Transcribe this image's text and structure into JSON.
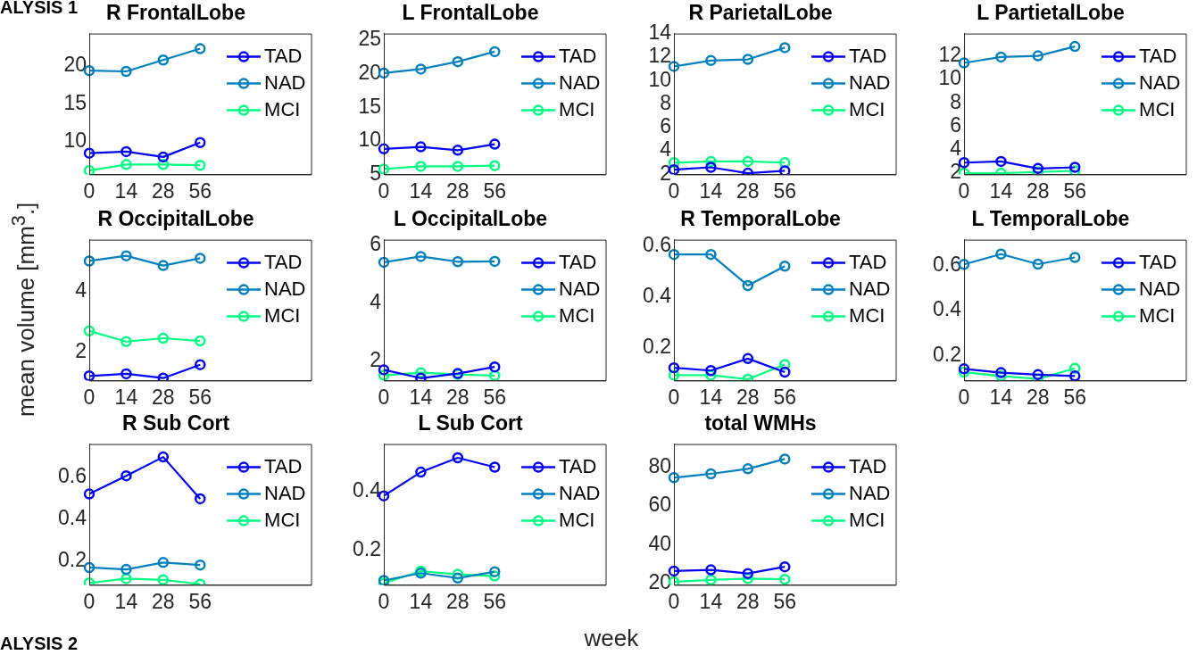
{
  "chart_data": [
    {
      "type": "line",
      "title": "R FrontalLobe",
      "annotations": [
        "ALYSIS 1"
      ],
      "categories": [
        "0",
        "14",
        "28",
        "56",
        null,
        null,
        null
      ],
      "ylim": [
        5.7,
        24.3
      ],
      "yticks": [
        10,
        15,
        20
      ],
      "marker": "circle",
      "legend": "top right",
      "grid": false,
      "series": [
        {
          "name": "TAD",
          "color": "#0000ff",
          "values": [
            8.5,
            8.7,
            8.0,
            9.9,
            null,
            null,
            null
          ]
        },
        {
          "name": "NAD",
          "color": "#0080bf",
          "values": [
            19.4,
            19.3,
            20.8,
            22.3,
            null,
            null,
            null
          ]
        },
        {
          "name": "MCI",
          "color": "#00ff80",
          "values": [
            6.2,
            7.0,
            7.0,
            6.9,
            null,
            null,
            null
          ]
        }
      ]
    },
    {
      "type": "line",
      "title": "L FrontalLobe",
      "categories": [
        "0",
        "14",
        "28",
        "56",
        null,
        null,
        null
      ],
      "ylim": [
        5,
        26
      ],
      "yticks": [
        5,
        10,
        15,
        20,
        25
      ],
      "marker": "circle",
      "legend": "top right",
      "grid": false,
      "series": [
        {
          "name": "TAD",
          "color": "#0000ff",
          "values": [
            8.8,
            9.1,
            8.6,
            9.5,
            null,
            null,
            null
          ]
        },
        {
          "name": "NAD",
          "color": "#0080bf",
          "values": [
            20.1,
            20.7,
            21.8,
            23.3,
            null,
            null,
            null
          ]
        },
        {
          "name": "MCI",
          "color": "#00ff80",
          "values": [
            5.8,
            6.2,
            6.2,
            6.3,
            null,
            null,
            null
          ]
        }
      ]
    },
    {
      "type": "line",
      "title": "R ParietalLobe",
      "categories": [
        "0",
        "14",
        "28",
        "56",
        null,
        null,
        null
      ],
      "ylim": [
        2,
        14
      ],
      "yticks": [
        2,
        4,
        6,
        8,
        10,
        12,
        14
      ],
      "marker": "circle",
      "legend": "top right",
      "grid": false,
      "series": [
        {
          "name": "TAD",
          "color": "#0000ff",
          "values": [
            2.4,
            2.6,
            2.1,
            2.3,
            null,
            null,
            null
          ]
        },
        {
          "name": "NAD",
          "color": "#0080bf",
          "values": [
            11.2,
            11.7,
            11.8,
            12.8,
            null,
            null,
            null
          ]
        },
        {
          "name": "MCI",
          "color": "#00ff80",
          "values": [
            3.0,
            3.1,
            3.1,
            3.0,
            null,
            null,
            null
          ]
        }
      ]
    },
    {
      "type": "line",
      "title": "L PartietalLobe",
      "categories": [
        "0",
        "14",
        "28",
        "56",
        null,
        null,
        null
      ],
      "ylim": [
        1.9,
        13.9
      ],
      "yticks": [
        2,
        4,
        6,
        8,
        10,
        12
      ],
      "marker": "circle",
      "legend": "top right",
      "grid": false,
      "series": [
        {
          "name": "TAD",
          "color": "#0000ff",
          "values": [
            2.9,
            3.0,
            2.4,
            2.5,
            null,
            null,
            null
          ]
        },
        {
          "name": "NAD",
          "color": "#0080bf",
          "values": [
            11.4,
            11.9,
            12.0,
            12.8,
            null,
            null,
            null
          ]
        },
        {
          "name": "MCI",
          "color": "#00ff80",
          "values": [
            2.0,
            2.0,
            2.1,
            2.2,
            null,
            null,
            null
          ]
        }
      ]
    },
    {
      "type": "line",
      "title": "R OccipitalLobe",
      "ylabel": "mean volume [mm$^{3}$.]",
      "categories": [
        "0",
        "14",
        "28",
        "56",
        null,
        null,
        null
      ],
      "ylim": [
        1.07,
        5.7
      ],
      "yticks": [
        2,
        4
      ],
      "marker": "circle",
      "legend": "top right",
      "grid": false,
      "series": [
        {
          "name": "TAD",
          "color": "#0000ff",
          "values": [
            1.22,
            1.29,
            1.15,
            1.59,
            null,
            null,
            null
          ]
        },
        {
          "name": "NAD",
          "color": "#0080bf",
          "values": [
            5.0,
            5.17,
            4.85,
            5.09,
            null,
            null,
            null
          ]
        },
        {
          "name": "MCI",
          "color": "#00ff80",
          "values": [
            2.7,
            2.35,
            2.46,
            2.37,
            null,
            null,
            null
          ]
        }
      ]
    },
    {
      "type": "line",
      "title": "L OccipitalLobe",
      "categories": [
        "0",
        "14",
        "28",
        "56",
        null,
        null,
        null
      ],
      "ylim": [
        1.33,
        6.19
      ],
      "yticks": [
        2,
        4,
        6
      ],
      "marker": "circle",
      "legend": "top right",
      "grid": false,
      "series": [
        {
          "name": "TAD",
          "color": "#0000ff",
          "values": [
            1.7,
            1.41,
            1.57,
            1.8,
            null,
            null,
            null
          ]
        },
        {
          "name": "NAD",
          "color": "#0080bf",
          "values": [
            5.41,
            5.61,
            5.43,
            5.44,
            null,
            null,
            null
          ]
        },
        {
          "name": "MCI",
          "color": "#00ff80",
          "values": [
            1.51,
            1.6,
            1.54,
            1.5,
            null,
            null,
            null
          ]
        }
      ]
    },
    {
      "type": "line",
      "title": "R TemporalLobe",
      "categories": [
        "0",
        "14",
        "28",
        "56",
        null,
        null,
        null
      ],
      "ylim": [
        0.071,
        0.624
      ],
      "yticks": [
        0.2,
        0.4,
        0.6
      ],
      "marker": "circle",
      "legend": "top right",
      "grid": false,
      "series": [
        {
          "name": "TAD",
          "color": "#0000ff",
          "values": [
            0.121,
            0.11,
            0.157,
            0.104,
            null,
            null,
            null
          ]
        },
        {
          "name": "NAD",
          "color": "#0080bf",
          "values": [
            0.566,
            0.566,
            0.444,
            0.52,
            null,
            null,
            null
          ]
        },
        {
          "name": "MCI",
          "color": "#00ff80",
          "values": [
            0.092,
            0.092,
            0.076,
            0.134,
            null,
            null,
            null
          ]
        }
      ]
    },
    {
      "type": "line",
      "title": "L TemporalLobe",
      "categories": [
        "0",
        "14",
        "28",
        "56",
        null,
        null,
        null
      ],
      "ylim": [
        0.089,
        0.716
      ],
      "yticks": [
        0.2,
        0.4,
        0.6
      ],
      "marker": "circle",
      "legend": "top right",
      "grid": false,
      "series": [
        {
          "name": "TAD",
          "color": "#0000ff",
          "values": [
            0.141,
            0.124,
            0.115,
            0.109,
            null,
            null,
            null
          ]
        },
        {
          "name": "NAD",
          "color": "#0080bf",
          "values": [
            0.606,
            0.652,
            0.607,
            0.637,
            null,
            null,
            null
          ]
        },
        {
          "name": "MCI",
          "color": "#00ff80",
          "values": [
            0.126,
            0.109,
            0.096,
            0.143,
            null,
            null,
            null
          ]
        }
      ]
    },
    {
      "type": "line",
      "title": "R Sub Cort",
      "annotations": [
        "ALYSIS 2"
      ],
      "categories": [
        "0",
        "14",
        "28",
        "56",
        null,
        null,
        null
      ],
      "ylim": [
        0.084,
        0.758
      ],
      "yticks": [
        0.2,
        0.4,
        0.6
      ],
      "marker": "circle",
      "legend": "top right",
      "grid": false,
      "series": [
        {
          "name": "TAD",
          "color": "#0000ff",
          "values": [
            0.519,
            0.606,
            0.696,
            0.496,
            null,
            null,
            null
          ]
        },
        {
          "name": "NAD",
          "color": "#0080bf",
          "values": [
            0.167,
            0.158,
            0.191,
            0.179,
            null,
            null,
            null
          ]
        },
        {
          "name": "MCI",
          "color": "#00ff80",
          "values": [
            0.093,
            0.114,
            0.108,
            0.087,
            null,
            null,
            null
          ]
        }
      ]
    },
    {
      "type": "line",
      "title": "L Sub Cort",
      "xlabel": "week",
      "categories": [
        "0",
        "14",
        "28",
        "56",
        null,
        null,
        null
      ],
      "ylim": [
        0.081,
        0.562
      ],
      "yticks": [
        0.2,
        0.4
      ],
      "marker": "circle",
      "legend": "top right",
      "grid": false,
      "series": [
        {
          "name": "TAD",
          "color": "#0000ff",
          "values": [
            0.385,
            0.466,
            0.515,
            0.483,
            null,
            null,
            null
          ]
        },
        {
          "name": "NAD",
          "color": "#0080bf",
          "values": [
            0.096,
            0.121,
            0.104,
            0.126,
            null,
            null,
            null
          ]
        },
        {
          "name": "MCI",
          "color": "#00ff80",
          "values": [
            0.087,
            0.128,
            0.117,
            0.111,
            null,
            null,
            null
          ]
        }
      ]
    },
    {
      "type": "line",
      "title": "total WMHs",
      "categories": [
        "0",
        "14",
        "28",
        "56",
        null,
        null,
        null
      ],
      "ylim": [
        19,
        92.3
      ],
      "yticks": [
        20,
        40,
        60,
        80
      ],
      "marker": "circle",
      "legend": "top right",
      "grid": false,
      "series": [
        {
          "name": "TAD",
          "color": "#0000ff",
          "values": [
            26.2,
            26.8,
            24.9,
            28.4,
            null,
            null,
            null
          ]
        },
        {
          "name": "NAD",
          "color": "#0080bf",
          "values": [
            74.8,
            76.8,
            79.4,
            84.5,
            null,
            null,
            null
          ]
        },
        {
          "name": "MCI",
          "color": "#00ff80",
          "values": [
            20.6,
            21.6,
            22.3,
            21.9,
            null,
            null,
            null
          ]
        }
      ]
    }
  ]
}
